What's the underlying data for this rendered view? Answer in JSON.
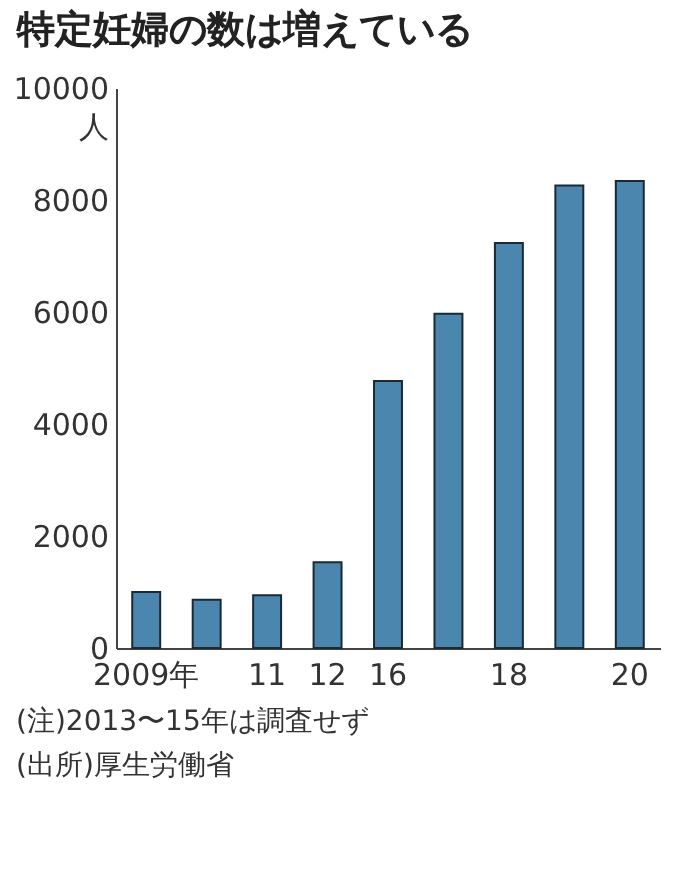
{
  "chart_data": {
    "type": "bar",
    "title": "特定妊婦の数は増えている",
    "ylabel": "人",
    "categories": [
      "2009年",
      null,
      "11",
      "12",
      "16",
      null,
      "18",
      null,
      "20"
    ],
    "values": [
      1000,
      860,
      940,
      1530,
      4770,
      5970,
      7230,
      8260,
      8340
    ],
    "color": "#4a86ad",
    "ylim": [
      0,
      10000
    ],
    "yticks": [
      0,
      2000,
      4000,
      6000,
      8000,
      10000
    ],
    "grid": false,
    "annotations": [
      "(注)2013〜15年は調査せず",
      "(出所)厚生労働省"
    ]
  }
}
